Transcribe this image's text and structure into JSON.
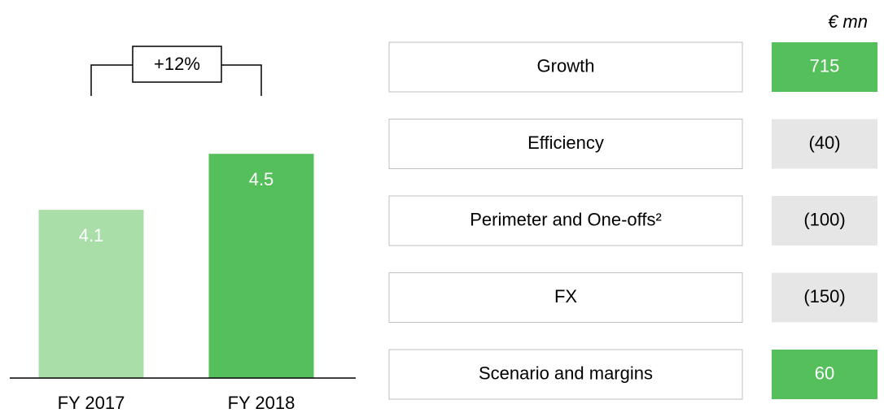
{
  "chart_data": [
    {
      "type": "bar",
      "categories": [
        "FY 2017",
        "FY 2018"
      ],
      "values": [
        4.1,
        4.5
      ],
      "colors": [
        "#a9dea9",
        "#55bf5b"
      ],
      "ylim": [
        2.9,
        5.0
      ],
      "annotation": "+12%"
    },
    {
      "type": "table",
      "unit": "€ mn",
      "categories": [
        "Growth",
        "Efficiency",
        "Perimeter and One-offs²",
        "FX",
        "Scenario and margins"
      ],
      "values": [
        715,
        -40,
        -100,
        -150,
        60
      ],
      "value_labels": [
        "715",
        "(40)",
        "(100)",
        "(150)",
        "60"
      ],
      "colors": [
        "#55bf5b",
        "#e6e6e6",
        "#e6e6e6",
        "#e6e6e6",
        "#55bf5b"
      ]
    }
  ]
}
